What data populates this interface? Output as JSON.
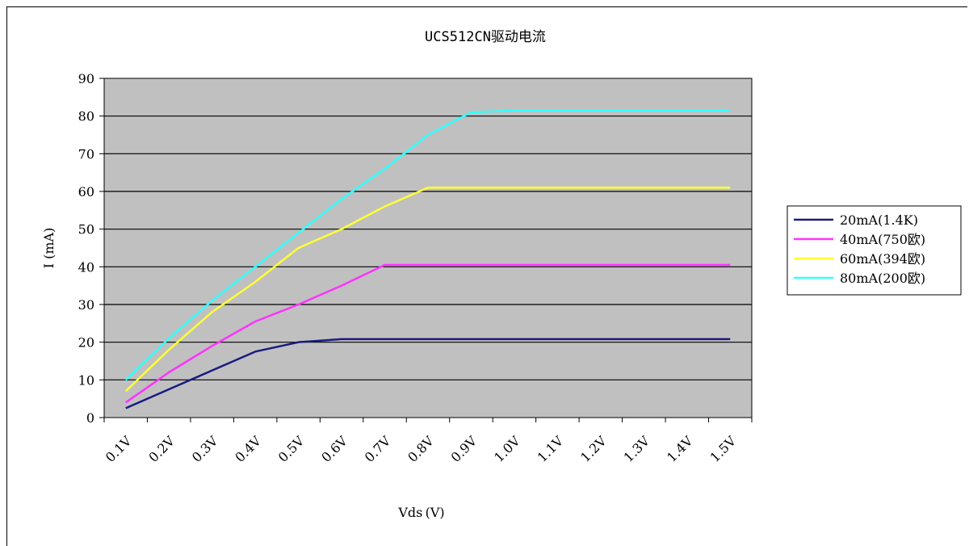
{
  "chart_data": {
    "type": "line",
    "title": "UCS512CN驱动电流",
    "xlabel": "Vds (V)",
    "ylabel": "I (mA)",
    "categories": [
      "0.1V",
      "0.2V",
      "0.3V",
      "0.4V",
      "0.5V",
      "0.6V",
      "0.7V",
      "0.8V",
      "0.9V",
      "1.0V",
      "1.1V",
      "1.2V",
      "1.3V",
      "1.4V",
      "1.5V"
    ],
    "ylim": [
      0,
      90
    ],
    "yticks": [
      0,
      10,
      20,
      30,
      40,
      50,
      60,
      70,
      80,
      90
    ],
    "grid": true,
    "plot_background": "#c0c0c0",
    "legend_position": "right",
    "series": [
      {
        "name": "20mA(1.4K)",
        "color": "#1a1a80",
        "values": [
          2.5,
          7.5,
          12.5,
          17.5,
          20,
          20.8,
          20.8,
          20.8,
          20.8,
          20.8,
          20.8,
          20.8,
          20.8,
          20.8,
          20.8
        ]
      },
      {
        "name": "40mA(750欧)",
        "color": "#ff33ff",
        "values": [
          4,
          12,
          19,
          25.5,
          30,
          35,
          40.5,
          40.5,
          40.5,
          40.5,
          40.5,
          40.5,
          40.5,
          40.5,
          40.5
        ]
      },
      {
        "name": "60mA(394欧)",
        "color": "#ffff33",
        "values": [
          7,
          18,
          28,
          36,
          45,
          50,
          56,
          61,
          61,
          61,
          61,
          61,
          61,
          61,
          61
        ]
      },
      {
        "name": "80mA(200欧)",
        "color": "#33ffff",
        "values": [
          10,
          21,
          31,
          40,
          49,
          58,
          66,
          75,
          81,
          81.5,
          81.5,
          81.5,
          81.5,
          81.5,
          81.5
        ]
      }
    ]
  }
}
